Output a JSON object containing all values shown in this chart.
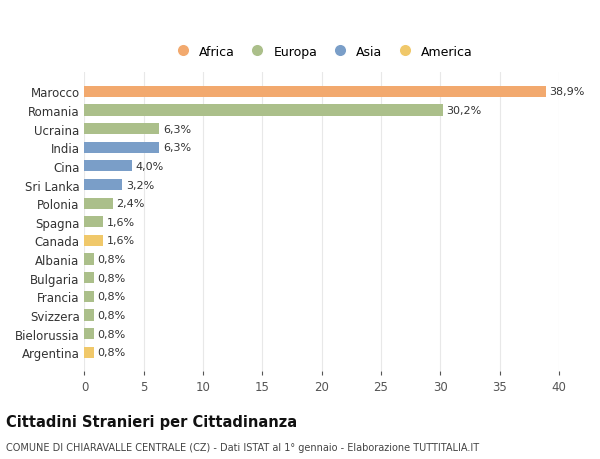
{
  "countries": [
    "Marocco",
    "Romania",
    "Ucraina",
    "India",
    "Cina",
    "Sri Lanka",
    "Polonia",
    "Spagna",
    "Canada",
    "Albania",
    "Bulgaria",
    "Francia",
    "Svizzera",
    "Bielorussia",
    "Argentina"
  ],
  "values": [
    38.9,
    30.2,
    6.3,
    6.3,
    4.0,
    3.2,
    2.4,
    1.6,
    1.6,
    0.8,
    0.8,
    0.8,
    0.8,
    0.8,
    0.8
  ],
  "labels": [
    "38,9%",
    "30,2%",
    "6,3%",
    "6,3%",
    "4,0%",
    "3,2%",
    "2,4%",
    "1,6%",
    "1,6%",
    "0,8%",
    "0,8%",
    "0,8%",
    "0,8%",
    "0,8%",
    "0,8%"
  ],
  "colors": [
    "#F2A96E",
    "#ABBF8A",
    "#ABBF8A",
    "#7A9EC8",
    "#7A9EC8",
    "#7A9EC8",
    "#ABBF8A",
    "#ABBF8A",
    "#F0C86A",
    "#ABBF8A",
    "#ABBF8A",
    "#ABBF8A",
    "#ABBF8A",
    "#ABBF8A",
    "#F0C86A"
  ],
  "legend_labels": [
    "Africa",
    "Europa",
    "Asia",
    "America"
  ],
  "legend_colors": [
    "#F2A96E",
    "#ABBF8A",
    "#7A9EC8",
    "#F0C86A"
  ],
  "title": "Cittadini Stranieri per Cittadinanza",
  "subtitle": "COMUNE DI CHIARAVALLE CENTRALE (CZ) - Dati ISTAT al 1° gennaio - Elaborazione TUTTITALIA.IT",
  "xlim": [
    0,
    40
  ],
  "xticks": [
    0,
    5,
    10,
    15,
    20,
    25,
    30,
    35,
    40
  ],
  "background_color": "#ffffff",
  "grid_color": "#e8e8e8"
}
